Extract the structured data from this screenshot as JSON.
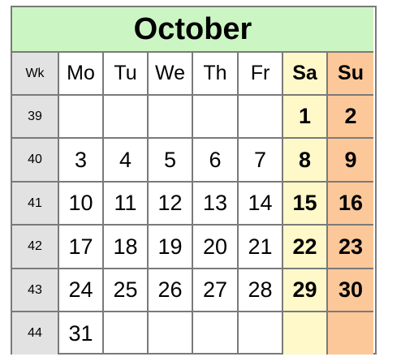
{
  "calendar": {
    "month": "October",
    "headers": [
      "Wk",
      "Mo",
      "Tu",
      "We",
      "Th",
      "Fr",
      "Sa",
      "Su"
    ],
    "weeks": [
      {
        "wk": "39",
        "days": [
          "",
          "",
          "",
          "",
          "",
          "1",
          "2"
        ]
      },
      {
        "wk": "40",
        "days": [
          "3",
          "4",
          "5",
          "6",
          "7",
          "8",
          "9"
        ]
      },
      {
        "wk": "41",
        "days": [
          "10",
          "11",
          "12",
          "13",
          "14",
          "15",
          "16"
        ]
      },
      {
        "wk": "42",
        "days": [
          "17",
          "18",
          "19",
          "20",
          "21",
          "22",
          "23"
        ]
      },
      {
        "wk": "43",
        "days": [
          "24",
          "25",
          "26",
          "27",
          "28",
          "29",
          "30"
        ]
      },
      {
        "wk": "44",
        "days": [
          "31",
          "",
          "",
          "",
          "",
          "",
          ""
        ]
      }
    ]
  },
  "colors": {
    "title_bg": "#ccf5c4",
    "week_col_bg": "#e2e2e2",
    "saturday_bg": "#fff8c8",
    "sunday_bg": "#fcc89a",
    "grid": "#7a7a7a"
  }
}
